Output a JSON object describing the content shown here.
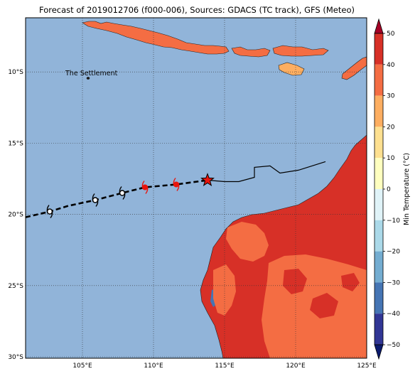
{
  "title": "Forecast of 2019012706 (f000-006), Sources: GDACS (TC track), GFS (Meteo)",
  "map": {
    "lon_range": [
      101,
      125
    ],
    "lat_range": [
      -30.1,
      -6.2
    ],
    "lon_ticks": [
      {
        "value": 105,
        "label": "105°E"
      },
      {
        "value": 110,
        "label": "110°E"
      },
      {
        "value": 115,
        "label": "115°E"
      },
      {
        "value": 120,
        "label": "120°E"
      },
      {
        "value": 125,
        "label": "125°E"
      }
    ],
    "lat_ticks": [
      {
        "value": -10,
        "label": "10°S"
      },
      {
        "value": -15,
        "label": "15°S"
      },
      {
        "value": -20,
        "label": "20°S"
      },
      {
        "value": -25,
        "label": "25°S"
      },
      {
        "value": -30,
        "label": "30°S"
      }
    ],
    "gridlines": true,
    "ocean_color": "#91b4d9",
    "place_label": {
      "text": "The Settlement",
      "lon": 105.7,
      "lat": -10.45
    }
  },
  "track": {
    "past_line": [
      [
        113.8,
        -17.6
      ],
      [
        115.0,
        -17.7
      ],
      [
        116.0,
        -17.7
      ],
      [
        117.1,
        -17.4
      ],
      [
        117.1,
        -16.7
      ],
      [
        118.2,
        -16.6
      ],
      [
        118.9,
        -17.1
      ],
      [
        120.2,
        -16.9
      ],
      [
        122.1,
        -16.3
      ]
    ],
    "forecast_line": [
      [
        101.0,
        -20.2
      ],
      [
        102.7,
        -19.8
      ],
      [
        104.0,
        -19.4
      ],
      [
        105.9,
        -19.0
      ],
      [
        107.8,
        -18.5
      ],
      [
        109.4,
        -18.1
      ],
      [
        111.6,
        -17.9
      ],
      [
        113.8,
        -17.6
      ]
    ],
    "current_position": {
      "lon": 113.8,
      "lat": -17.6,
      "symbol": "star",
      "color": "#e8140c"
    },
    "forecast_points": [
      {
        "lon": 111.6,
        "lat": -17.9,
        "category": "storm",
        "color": "#e8140c"
      },
      {
        "lon": 109.4,
        "lat": -18.1,
        "category": "storm",
        "color": "#e8140c"
      },
      {
        "lon": 107.8,
        "lat": -18.5,
        "category": "depression",
        "color": "#000000"
      },
      {
        "lon": 105.9,
        "lat": -19.0,
        "category": "depression",
        "color": "#000000"
      },
      {
        "lon": 102.7,
        "lat": -19.8,
        "category": "depression",
        "color": "#000000"
      }
    ]
  },
  "colorbar": {
    "label": "Min Temperature (°C)",
    "ticks": [
      "50",
      "40",
      "30",
      "20",
      "10",
      "0",
      "−10",
      "−20",
      "−30",
      "−40",
      "−50"
    ],
    "colors": [
      "#67001f",
      "#b2182b",
      "#d6604d",
      "#f4a582",
      "#fddbc7",
      "#f7f7f7",
      "#d1e5f0",
      "#92c5de",
      "#4393c3",
      "#2166ac",
      "#053061"
    ],
    "bins_top_to_bottom": [
      "#a50026",
      "#d73027",
      "#f46d43",
      "#fdae61",
      "#fee090",
      "#ffffbf",
      "#e0f3f8",
      "#abd9e9",
      "#74add1",
      "#4575b4",
      "#313695"
    ],
    "fill_colors": {
      "hot": "#d73027",
      "warm": "#f46d43",
      "cool": "#4575b4"
    }
  }
}
